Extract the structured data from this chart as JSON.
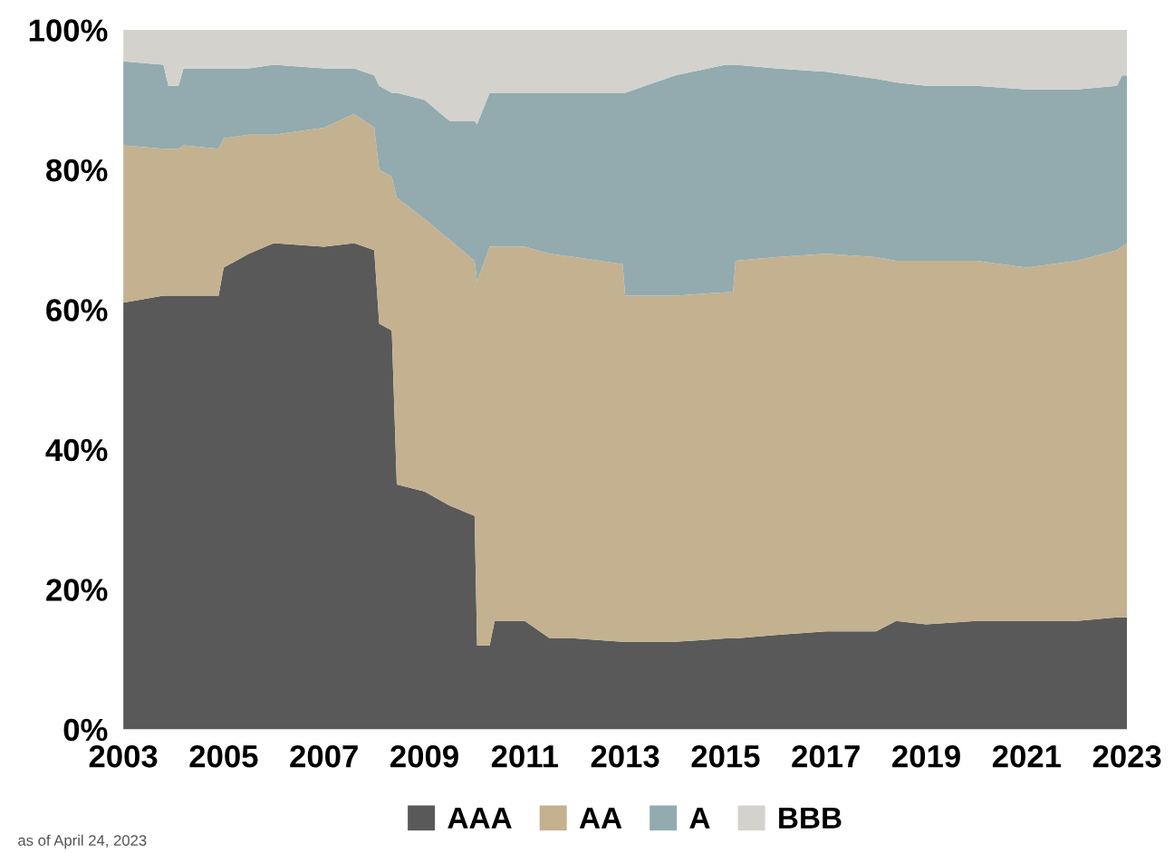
{
  "chart_data": {
    "type": "area",
    "stacked": true,
    "x": [
      2003.0,
      2003.8,
      2003.9,
      2004.1,
      2004.2,
      2004.9,
      2005.0,
      2005.5,
      2006.0,
      2007.0,
      2007.6,
      2008.0,
      2008.1,
      2008.35,
      2008.45,
      2009.0,
      2009.5,
      2010.0,
      2010.05,
      2010.3,
      2010.4,
      2011.0,
      2011.5,
      2012.0,
      2012.95,
      2013.0,
      2014.0,
      2015.0,
      2015.15,
      2015.2,
      2016.0,
      2017.0,
      2018.0,
      2018.4,
      2019.0,
      2020.0,
      2021.0,
      2022.0,
      2022.8,
      2022.9,
      2023.0
    ],
    "series": [
      {
        "name": "AAA",
        "color": "#595959",
        "values": [
          61,
          62,
          62,
          62,
          62,
          62,
          66,
          68,
          69.5,
          69,
          69.5,
          68.5,
          58,
          57,
          35,
          34,
          32,
          30.5,
          12,
          12,
          15.5,
          15.5,
          13,
          13,
          12.5,
          12.5,
          12.5,
          13,
          13,
          13,
          13.5,
          14,
          14,
          15.5,
          15,
          15.5,
          15.5,
          15.5,
          16,
          16,
          16
        ]
      },
      {
        "name": "AA",
        "color": "#c4b190",
        "values": [
          22.5,
          21,
          21,
          21,
          21.5,
          21,
          18.5,
          17,
          15.5,
          17,
          18.5,
          17.5,
          22,
          22,
          41,
          39,
          38,
          36.5,
          52,
          57,
          53.5,
          53.5,
          55,
          54.5,
          54,
          49.5,
          49.5,
          49.5,
          49.5,
          54,
          54,
          54,
          53.5,
          51.5,
          52,
          51.5,
          50.5,
          51.5,
          52.5,
          53,
          53.5
        ]
      },
      {
        "name": "A",
        "color": "#93abae",
        "values": [
          12,
          12,
          9,
          9,
          11,
          11.5,
          10,
          9.5,
          10,
          8.5,
          6.5,
          7.5,
          12,
          12,
          15,
          17,
          17,
          20,
          22.5,
          22,
          22,
          22,
          23,
          23.5,
          24.5,
          29,
          31.5,
          32.5,
          32.5,
          28,
          27,
          26,
          25.5,
          25.5,
          25,
          25,
          25.5,
          24.5,
          23.5,
          24.5,
          24
        ]
      },
      {
        "name": "BBB",
        "color": "#d3d2cd",
        "values": [
          4.5,
          5,
          8,
          8,
          5.5,
          5.5,
          5.5,
          5.5,
          5,
          5.5,
          5.5,
          6.5,
          8,
          9,
          9,
          10,
          13,
          13,
          13.5,
          9,
          9,
          9,
          9,
          9,
          9,
          9,
          6.5,
          5,
          5,
          5,
          5.5,
          6,
          7,
          7.5,
          8,
          8,
          8.5,
          8.5,
          8,
          6.5,
          6.5
        ]
      }
    ],
    "xlim": [
      2003,
      2023
    ],
    "xticks": [
      2003,
      2005,
      2007,
      2009,
      2011,
      2013,
      2015,
      2017,
      2019,
      2021,
      2023
    ],
    "ylim": [
      0,
      100
    ],
    "yticks": [
      {
        "value": 0,
        "label": "0%"
      },
      {
        "value": 20,
        "label": "20%"
      },
      {
        "value": 40,
        "label": "40%"
      },
      {
        "value": 60,
        "label": "60%"
      },
      {
        "value": 80,
        "label": "80%"
      },
      {
        "value": 100,
        "label": "100%"
      }
    ],
    "legend": "bottom",
    "grid": false,
    "annotations": [
      "as of April 24, 2023"
    ]
  }
}
